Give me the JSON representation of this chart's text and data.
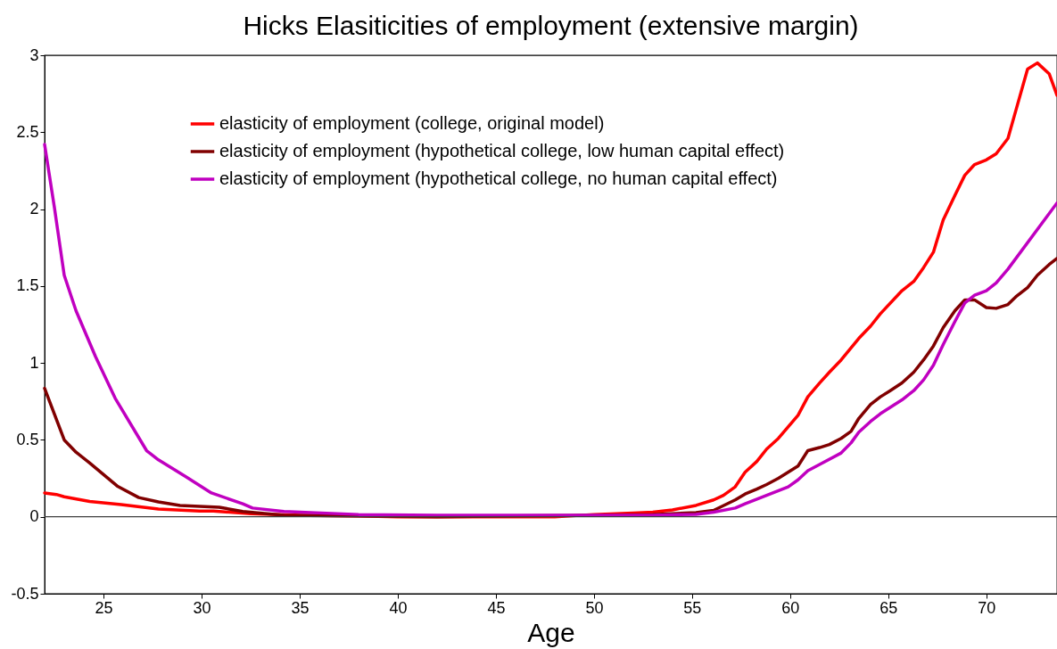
{
  "chart_data": {
    "type": "line",
    "title": "Hicks Elasiticities of employment (extensive margin)",
    "xlabel": "Age",
    "xlim": [
      22,
      73.6
    ],
    "xticks": [
      25,
      30,
      35,
      40,
      45,
      50,
      55,
      60,
      65,
      70
    ],
    "ylim": [
      -0.5,
      3
    ],
    "yticks": [
      -0.5,
      0,
      0.5,
      1,
      1.5,
      2,
      2.5,
      3
    ],
    "grid": false,
    "legend": "top left",
    "line_style": "solid",
    "marker": "none",
    "ref_lines": [
      {
        "axis": "y",
        "value": 0,
        "color": "#404040"
      }
    ],
    "series": [
      {
        "name": "elasticity of employment (college, original model)",
        "color": "#ff0000",
        "x": [
          22,
          22.6,
          23,
          24.3,
          25.9,
          27.8,
          29.9,
          30.6,
          32.5,
          35,
          38,
          40,
          45,
          48,
          50,
          52,
          53,
          54,
          55.2,
          56.1,
          56.6,
          57.2,
          57.7,
          58.3,
          58.8,
          59.4,
          60.4,
          60.9,
          61.5,
          62,
          62.6,
          63.5,
          64.1,
          64.6,
          65.7,
          66.3,
          66.8,
          67.3,
          67.8,
          68.4,
          68.9,
          69.4,
          70,
          70.5,
          71.1,
          71.5,
          72.1,
          72.6,
          73.2,
          73.6
        ],
        "values": [
          0.155,
          0.145,
          0.13,
          0.1,
          0.079,
          0.051,
          0.037,
          0.037,
          0.02,
          0.01,
          0.005,
          0,
          0,
          0,
          0.015,
          0.025,
          0.03,
          0.045,
          0.074,
          0.11,
          0.14,
          0.195,
          0.29,
          0.36,
          0.44,
          0.51,
          0.66,
          0.78,
          0.87,
          0.94,
          1.02,
          1.16,
          1.24,
          1.32,
          1.47,
          1.53,
          1.62,
          1.72,
          1.93,
          2.09,
          2.22,
          2.29,
          2.32,
          2.36,
          2.46,
          2.64,
          2.91,
          2.95,
          2.88,
          2.74
        ]
      },
      {
        "name": "elasticity of employment (hypothetical college, low human capital effect)",
        "color": "#800000",
        "x": [
          22,
          23,
          23.6,
          24.3,
          25.7,
          26.8,
          27.8,
          28.9,
          30.9,
          32.1,
          34.2,
          38,
          42,
          46,
          50,
          53,
          55.2,
          56.1,
          57.2,
          57.7,
          58.3,
          58.8,
          59.4,
          60.4,
          60.9,
          61.5,
          62,
          62.6,
          63.1,
          63.5,
          64.1,
          64.6,
          65.1,
          65.7,
          66.3,
          66.8,
          67.3,
          67.8,
          68.4,
          68.9,
          69.4,
          70,
          70.5,
          71.1,
          71.5,
          72.1,
          72.6,
          73.2,
          73.6
        ],
        "values": [
          0.835,
          0.5,
          0.42,
          0.35,
          0.2,
          0.125,
          0.097,
          0.074,
          0.062,
          0.035,
          0.01,
          0.005,
          0,
          0.005,
          0.01,
          0.015,
          0.028,
          0.042,
          0.11,
          0.148,
          0.18,
          0.21,
          0.25,
          0.33,
          0.43,
          0.45,
          0.47,
          0.51,
          0.555,
          0.64,
          0.73,
          0.78,
          0.82,
          0.87,
          0.94,
          1.02,
          1.11,
          1.23,
          1.34,
          1.41,
          1.41,
          1.36,
          1.355,
          1.38,
          1.43,
          1.49,
          1.57,
          1.64,
          1.68
        ]
      },
      {
        "name": "elasticity of employment (hypothetical college, no human capital effect)",
        "color": "#c000c0",
        "x": [
          22,
          22.5,
          23,
          23.6,
          24.6,
          25.6,
          27.2,
          27.8,
          29.2,
          30.5,
          32.1,
          32.6,
          34.2,
          38,
          42,
          46,
          50,
          53,
          55.2,
          56.1,
          57.2,
          57.7,
          58.8,
          59.9,
          60.4,
          60.9,
          61.5,
          62.6,
          63.1,
          63.5,
          64.1,
          64.6,
          65.7,
          66.3,
          66.8,
          67.3,
          67.8,
          68.4,
          68.9,
          69.4,
          70,
          70.5,
          71.1,
          73.6
        ],
        "values": [
          2.42,
          2.01,
          1.57,
          1.34,
          1.04,
          0.77,
          0.43,
          0.37,
          0.26,
          0.155,
          0.085,
          0.057,
          0.035,
          0.015,
          0.01,
          0.01,
          0.01,
          0.01,
          0.016,
          0.03,
          0.057,
          0.085,
          0.14,
          0.195,
          0.24,
          0.3,
          0.34,
          0.415,
          0.48,
          0.55,
          0.62,
          0.67,
          0.76,
          0.82,
          0.89,
          0.985,
          1.12,
          1.27,
          1.39,
          1.44,
          1.47,
          1.52,
          1.61,
          2.04
        ]
      }
    ]
  }
}
